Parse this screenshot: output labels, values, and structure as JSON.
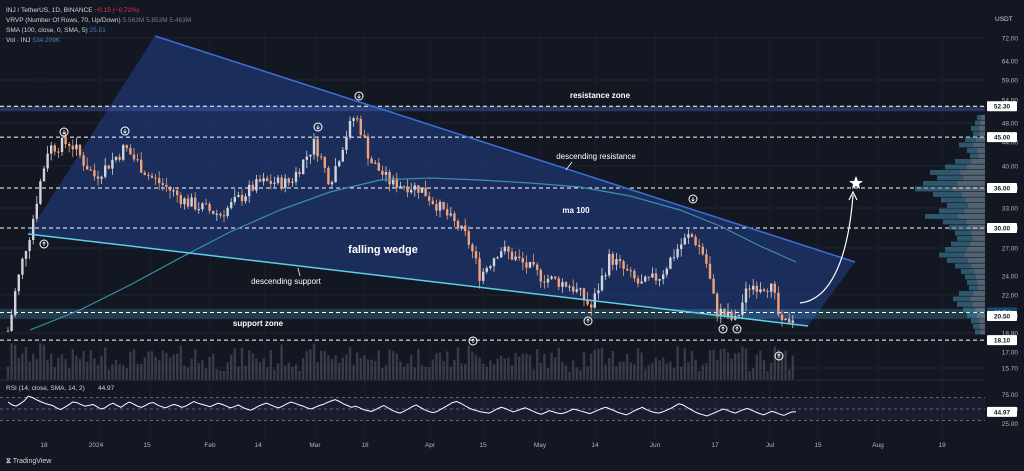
{
  "header": {
    "symbol": "INJ / TetherUS, 1D, BINANCE",
    "change": "−0.15 (−0.72%)",
    "vrvp": "VRVP (Number Of Rows, 70, Up/Down)",
    "vrvp_values": "5.563M  5.853M  5.463M",
    "sma": "SMA (100, close, 0, SMA, 5)",
    "sma_value": "25.51",
    "vol": "Vol · INJ",
    "vol_value": "534.209K"
  },
  "currency": "USDT",
  "footer": "TradingView",
  "colors": {
    "bg": "#131722",
    "up": "#d1d4dc",
    "down": "#f0a37a",
    "wedge": "#1e3a78",
    "ma": "#3a8fb0",
    "support": "#5bd0e6",
    "resistance": "#3a6fd8",
    "text": "#ffffff"
  },
  "chart_data": {
    "type": "candlestick",
    "y_axis_ticks": [
      "72.00",
      "64.00",
      "59.00",
      "54.00",
      "48.00",
      "44.00",
      "40.00",
      "36.00",
      "33.00",
      "30.00",
      "27.00",
      "24.00",
      "22.00",
      "20.50",
      "18.80",
      "17.00",
      "15.70"
    ],
    "price_labels": [
      {
        "text": "52.30",
        "y": 52.3,
        "style": "white"
      },
      {
        "text": "45.00",
        "y": 45.0,
        "style": "white"
      },
      {
        "text": "36.00",
        "y": 36.0,
        "style": "white"
      },
      {
        "text": "30.00",
        "y": 30.0,
        "style": "white"
      },
      {
        "text": "20.74",
        "y": 20.74,
        "style": "dark"
      },
      {
        "text": "20.50",
        "y": 20.5,
        "style": "white"
      },
      {
        "text": "18.10",
        "y": 18.1,
        "style": "white"
      }
    ],
    "x_axis_labels": [
      "18",
      "2024",
      "15",
      "Feb",
      "14",
      "Mar",
      "18",
      "Apr",
      "15",
      "May",
      "14",
      "Jun",
      "17",
      "Jul",
      "15",
      "Aug",
      "19"
    ],
    "annotations": [
      "resistance zone",
      "descending resistance",
      "ma 100",
      "falling wedge",
      "descending support",
      "support zone"
    ],
    "resistance_zone": [
      51.5,
      52.3
    ],
    "support_zone": [
      20.2,
      21.0
    ],
    "h_levels": [
      52.3,
      45.0,
      36.0,
      30.0,
      20.74,
      18.1
    ],
    "ma_label": "ma 100",
    "rsi": {
      "label": "RSI (14, close, SMA, 14, 2)",
      "value": "44.97",
      "ticks": [
        "75.00",
        "50.00",
        "25.00"
      ],
      "levels": [
        70,
        50,
        30
      ],
      "series": [
        62,
        57,
        55,
        59,
        64,
        72,
        70,
        66,
        63,
        60,
        58,
        56,
        52,
        49,
        53,
        57,
        62,
        61,
        58,
        55,
        56,
        58,
        54,
        50,
        52,
        57,
        60,
        56,
        53,
        58,
        62,
        59,
        55,
        53,
        56,
        60,
        61,
        57,
        54,
        52,
        55,
        58,
        56,
        53,
        55,
        59,
        63,
        60,
        58,
        56,
        54,
        57,
        60,
        58,
        55,
        52,
        54,
        57,
        53,
        50,
        48,
        51,
        55,
        58,
        60,
        57,
        54,
        52,
        55,
        59,
        62,
        60,
        57,
        55,
        52,
        50,
        53,
        56,
        58,
        61,
        64,
        66,
        63,
        59,
        56,
        53,
        55,
        52,
        49,
        47,
        46,
        49,
        53,
        56,
        52,
        48,
        45,
        43,
        46,
        50,
        54,
        57,
        53,
        49,
        46,
        44,
        45,
        49,
        53,
        57,
        61,
        63,
        60,
        56,
        52,
        49,
        47,
        45,
        44,
        43,
        46,
        50,
        53,
        51,
        48,
        45,
        47,
        50,
        52,
        49,
        46,
        43,
        41,
        44,
        47,
        45,
        43,
        42,
        44,
        47,
        50,
        48,
        46,
        44,
        42,
        45,
        48,
        51,
        53,
        50,
        47,
        44,
        42,
        40,
        43,
        47,
        50,
        53,
        49,
        46,
        44,
        43,
        45,
        48,
        51,
        55,
        59,
        57,
        53,
        49,
        45,
        42,
        40,
        38,
        41,
        44,
        47,
        50,
        48,
        45,
        43,
        46,
        49,
        51,
        48,
        45,
        42,
        40,
        43,
        46,
        44,
        41,
        39,
        42,
        45,
        44.97
      ]
    },
    "volume_label": "Vol · INJ"
  }
}
